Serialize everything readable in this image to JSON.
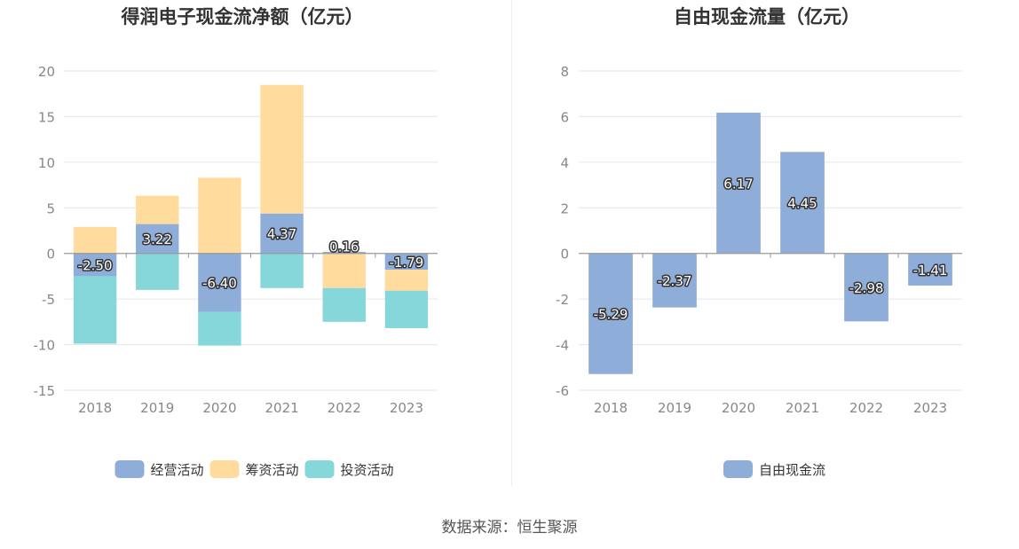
{
  "source": "数据来源：恒生聚源",
  "colors": {
    "operating": "#8fadd9",
    "financing": "#ffdb9e",
    "investing": "#86d7da",
    "fcf": "#8fadd9",
    "grid": "#e6e6e6",
    "axis": "#999999",
    "tick": "#888888",
    "title": "#333333"
  },
  "chart_data": [
    {
      "type": "bar",
      "stacked": true,
      "title": "得润电子现金流净额（亿元）",
      "categories": [
        "2018",
        "2019",
        "2020",
        "2021",
        "2022",
        "2023"
      ],
      "ylim": [
        -15,
        20
      ],
      "yticks": [
        20,
        15,
        10,
        5,
        0,
        -5,
        -10,
        -15
      ],
      "legend_position": "bottom",
      "series": [
        {
          "name": "经营活动",
          "key": "operating",
          "values": [
            -2.5,
            3.22,
            -6.4,
            4.37,
            0.16,
            -1.79
          ],
          "labeled": true
        },
        {
          "name": "筹资活动",
          "key": "financing",
          "values": [
            2.9,
            3.1,
            8.3,
            14.1,
            -3.8,
            -2.3
          ],
          "labeled": false
        },
        {
          "name": "投资活动",
          "key": "investing",
          "values": [
            -7.4,
            -4.0,
            -3.7,
            -3.8,
            -3.7,
            -4.1
          ],
          "labeled": false
        }
      ],
      "data_labels": [
        "-2.50",
        "3.22",
        "-6.40",
        "4.37",
        "0.16",
        "-1.79"
      ]
    },
    {
      "type": "bar",
      "title": "自由现金流量（亿元）",
      "categories": [
        "2018",
        "2019",
        "2020",
        "2021",
        "2022",
        "2023"
      ],
      "ylim": [
        -6,
        8
      ],
      "yticks": [
        8,
        6,
        4,
        2,
        0,
        -2,
        -4,
        -6
      ],
      "legend_position": "bottom",
      "series": [
        {
          "name": "自由现金流",
          "key": "fcf",
          "values": [
            -5.29,
            -2.37,
            6.17,
            4.45,
            -2.98,
            -1.41
          ],
          "labeled": true
        }
      ],
      "data_labels": [
        "-5.29",
        "-2.37",
        "6.17",
        "4.45",
        "-2.98",
        "-1.41"
      ]
    }
  ]
}
